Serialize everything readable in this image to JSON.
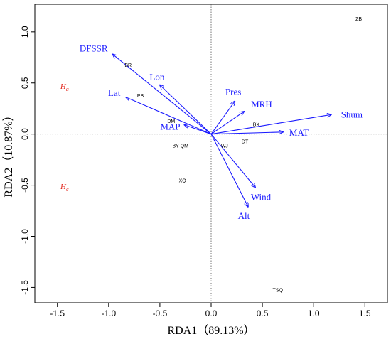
{
  "chart_data": {
    "type": "scatter",
    "title": "",
    "xlabel": "RDA1（89.13%）",
    "ylabel": "RDA2（10.87%）",
    "xlim": [
      -1.72,
      1.72
    ],
    "ylim": [
      -1.65,
      1.27
    ],
    "xticks": [
      -1.5,
      -1.0,
      -0.5,
      0.0,
      0.5,
      1.0,
      1.5
    ],
    "xtick_labels": [
      "-1.5",
      "-1.0",
      "-0.5",
      "0.0",
      "0.5",
      "1.0",
      "1.5"
    ],
    "yticks": [
      -1.5,
      -1.0,
      -0.5,
      0.0,
      0.5,
      1.0
    ],
    "ytick_labels": [
      "-1.5",
      "-1.0",
      "-0.5",
      "0.0",
      "0.5",
      "1.0"
    ],
    "reference_lines": {
      "x": 0,
      "y": 0,
      "style": "dotted"
    },
    "vector_color": "#1a1aff",
    "group_color": "#e3261c",
    "vectors": [
      {
        "name": "DFSSR",
        "x": -0.96,
        "y": 0.78
      },
      {
        "name": "Lon",
        "x": -0.5,
        "y": 0.48
      },
      {
        "name": "Lat",
        "x": -0.83,
        "y": 0.36
      },
      {
        "name": "MAP",
        "x": -0.26,
        "y": 0.09
      },
      {
        "name": "Pres",
        "x": 0.23,
        "y": 0.32
      },
      {
        "name": "MRH",
        "x": 0.32,
        "y": 0.22
      },
      {
        "name": "Shum",
        "x": 1.17,
        "y": 0.19
      },
      {
        "name": "MAT",
        "x": 0.7,
        "y": 0.02
      },
      {
        "name": "Wind",
        "x": 0.43,
        "y": -0.52
      },
      {
        "name": "Alt",
        "x": 0.36,
        "y": -0.71
      }
    ],
    "sites": [
      {
        "name": "ZB",
        "x": 1.44,
        "y": 1.13
      },
      {
        "name": "BR",
        "x": -0.81,
        "y": 0.68
      },
      {
        "name": "PB",
        "x": -0.69,
        "y": 0.38
      },
      {
        "name": "DM",
        "x": -0.39,
        "y": 0.13
      },
      {
        "name": "BX",
        "x": 0.44,
        "y": 0.1
      },
      {
        "name": "DT",
        "x": 0.33,
        "y": -0.07
      },
      {
        "name": "WJ",
        "x": 0.13,
        "y": -0.11
      },
      {
        "name": "BY QM",
        "x": -0.3,
        "y": -0.11
      },
      {
        "name": "XQ",
        "x": -0.28,
        "y": -0.45
      },
      {
        "name": "TSQ",
        "x": 0.65,
        "y": -1.52
      }
    ],
    "groups": [
      {
        "name": "H",
        "subscript": "a",
        "x": -1.43,
        "y": 0.47
      },
      {
        "name": "H",
        "subscript": "c",
        "x": -1.43,
        "y": -0.51
      }
    ]
  }
}
